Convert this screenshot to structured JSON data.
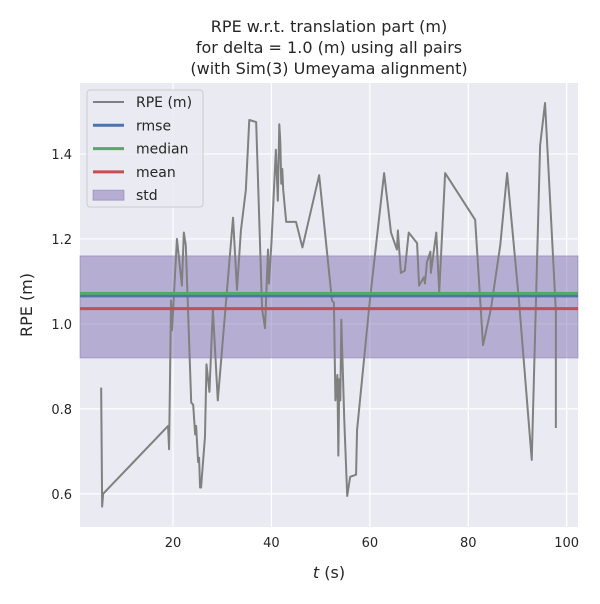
{
  "chart_data": {
    "type": "line",
    "title": [
      "RPE w.r.t. translation part (m)",
      "for delta = 1.0 (m) using all pairs",
      "(with Sim(3) Umeyama alignment)"
    ],
    "xlabel": "t (s)",
    "xlabel_var": "t",
    "xlabel_unit": " (s)",
    "ylabel": "RPE (m)",
    "xlim": [
      1.1,
      102.3
    ],
    "ylim": [
      0.522,
      1.567
    ],
    "xticks": [
      20,
      40,
      60,
      80,
      100
    ],
    "xtick_labels": [
      "20",
      "40",
      "60",
      "80",
      "100"
    ],
    "yticks": [
      0.6,
      0.8,
      1.0,
      1.2,
      1.4
    ],
    "ytick_labels": [
      "0.6",
      "0.8",
      "1.0",
      "1.2",
      "1.4"
    ],
    "grid": true,
    "legend_position": "top-left",
    "legend": [
      "RPE (m)",
      "rmse",
      "median",
      "mean",
      "std"
    ],
    "colors": {
      "rpe": "#808080",
      "rmse": "#4c72b0",
      "median": "#55a868",
      "mean": "#c44e52",
      "std": "#8172b2",
      "background": "#eaeaf2"
    },
    "rmse": 1.066,
    "median": 1.072,
    "mean": 1.036,
    "std_range": [
      0.92,
      1.16
    ],
    "series": [
      {
        "name": "RPE (m)",
        "x": [
          5.4,
          5.6,
          5.8,
          19.0,
          19.2,
          19.6,
          19.8,
          20.8,
          21.8,
          22.2,
          22.6,
          23.7,
          24.1,
          24.5,
          24.7,
          25.1,
          25.3,
          25.5,
          25.7,
          26.5,
          26.8,
          27.4,
          28.1,
          29.1,
          32.2,
          33.0,
          33.8,
          34.8,
          35.5,
          36.9,
          38.1,
          38.7,
          39.3,
          39.5,
          40.0,
          40.9,
          41.3,
          41.6,
          41.8,
          42.0,
          42.2,
          42.4,
          43.0,
          45.0,
          46.3,
          49.7,
          52.3,
          52.7,
          53.0,
          53.4,
          53.6,
          53.8,
          54.0,
          54.2,
          54.8,
          55.4,
          56.0,
          57.2,
          57.4,
          60.0,
          62.9,
          64.3,
          65.5,
          65.7,
          66.3,
          67.1,
          67.9,
          69.6,
          70.0,
          71.0,
          71.2,
          71.6,
          72.3,
          72.4,
          73.5,
          74.1,
          75.3,
          81.4,
          83.0,
          84.6,
          86.5,
          87.9,
          90.3,
          92.9,
          94.6,
          95.6,
          97.8,
          97.8
        ],
        "y": [
          0.85,
          0.57,
          0.6,
          0.76,
          0.705,
          1.055,
          0.985,
          1.2,
          1.09,
          1.215,
          1.185,
          0.815,
          0.81,
          0.74,
          0.76,
          0.675,
          0.685,
          0.615,
          0.615,
          0.735,
          0.905,
          0.84,
          1.035,
          0.82,
          1.25,
          1.08,
          1.22,
          1.315,
          1.48,
          1.475,
          1.035,
          0.99,
          1.175,
          1.095,
          1.19,
          1.41,
          1.29,
          1.47,
          1.43,
          1.33,
          1.365,
          1.315,
          1.24,
          1.24,
          1.18,
          1.35,
          1.055,
          1.05,
          0.82,
          0.88,
          0.69,
          0.87,
          0.82,
          1.01,
          0.775,
          0.595,
          0.64,
          0.645,
          0.75,
          1.055,
          1.355,
          1.215,
          1.175,
          1.22,
          1.12,
          1.125,
          1.215,
          1.19,
          1.09,
          1.11,
          1.095,
          1.145,
          1.17,
          1.12,
          1.215,
          1.075,
          1.355,
          1.245,
          0.95,
          1.035,
          1.185,
          1.355,
          1.055,
          0.68,
          1.42,
          1.52,
          1.03,
          0.755
        ]
      }
    ]
  }
}
